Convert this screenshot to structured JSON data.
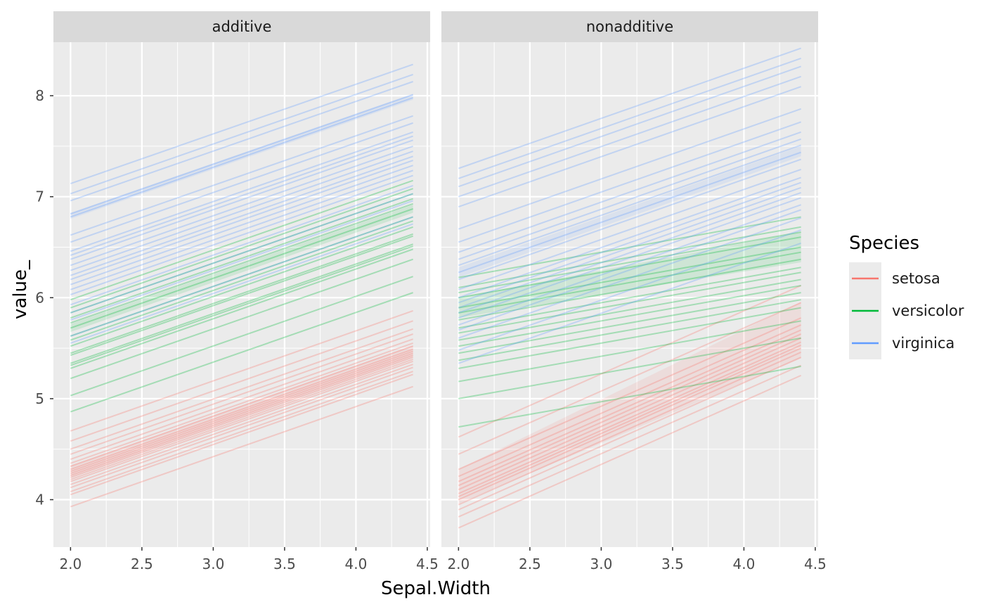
{
  "chart_data": {
    "type": "line",
    "xlabel": "Sepal.Width",
    "ylabel": "value_",
    "xlim": [
      1.88,
      4.52
    ],
    "ylim": [
      3.53,
      8.53
    ],
    "x_ticks": [
      2.0,
      2.5,
      3.0,
      3.5,
      4.0,
      4.5
    ],
    "x_tick_labels": [
      "2.0",
      "2.5",
      "3.0",
      "3.5",
      "4.0",
      "4.5"
    ],
    "y_ticks": [
      4,
      5,
      6,
      7,
      8
    ],
    "y_tick_labels": [
      "4",
      "5",
      "6",
      "7",
      "8"
    ],
    "x_range_lines": [
      2.0,
      4.4
    ],
    "grid": true,
    "legend": {
      "title": "Species",
      "position": "right",
      "entries": [
        {
          "label": "setosa",
          "color": "#F8766D"
        },
        {
          "label": "versicolor",
          "color": "#00BA38"
        },
        {
          "label": "virginica",
          "color": "#619CFF"
        }
      ]
    },
    "panels": [
      {
        "label": "additive",
        "series": [
          {
            "name": "setosa",
            "color": "#F8766D",
            "start_values": [
              3.93,
              4.05,
              4.08,
              4.12,
              4.15,
              4.18,
              4.2,
              4.22,
              4.24,
              4.26,
              4.28,
              4.3,
              4.33,
              4.36,
              4.4,
              4.45,
              4.5,
              4.58,
              4.68
            ],
            "end_values": [
              5.12,
              5.24,
              5.27,
              5.31,
              5.34,
              5.37,
              5.39,
              5.41,
              5.43,
              5.45,
              5.47,
              5.49,
              5.52,
              5.55,
              5.59,
              5.64,
              5.69,
              5.77,
              5.87
            ],
            "band": [
              [
                4.22,
                5.41
              ],
              [
                4.34,
                5.53
              ]
            ]
          },
          {
            "name": "versicolor",
            "color": "#00BA38",
            "start_values": [
              4.87,
              5.03,
              5.2,
              5.3,
              5.33,
              5.35,
              5.43,
              5.45,
              5.52,
              5.58,
              5.62,
              5.7,
              5.75,
              5.8,
              5.85,
              5.9,
              5.98
            ],
            "end_values": [
              6.05,
              6.21,
              6.38,
              6.48,
              6.51,
              6.53,
              6.61,
              6.63,
              6.7,
              6.76,
              6.8,
              6.88,
              6.93,
              6.98,
              7.03,
              7.08,
              7.16
            ],
            "band": [
              [
                5.66,
                6.84
              ],
              [
                5.74,
                6.92
              ]
            ]
          },
          {
            "name": "virginica",
            "color": "#619CFF",
            "start_values": [
              5.55,
              5.62,
              5.78,
              5.85,
              5.93,
              6.03,
              6.08,
              6.13,
              6.18,
              6.22,
              6.27,
              6.32,
              6.38,
              6.42,
              6.46,
              6.55,
              6.62,
              6.8,
              6.83,
              6.96,
              7.03,
              7.13
            ],
            "end_values": [
              6.73,
              6.8,
              6.96,
              7.03,
              7.11,
              7.21,
              7.26,
              7.31,
              7.36,
              7.4,
              7.45,
              7.5,
              7.56,
              7.6,
              7.64,
              7.73,
              7.8,
              7.98,
              8.01,
              8.14,
              8.21,
              8.31
            ],
            "band": [
              [
                6.78,
                7.96
              ],
              [
                6.84,
                8.02
              ]
            ]
          }
        ]
      },
      {
        "label": "nonadditive",
        "series": [
          {
            "name": "setosa",
            "color": "#F8766D",
            "start_values": [
              3.72,
              3.83,
              3.9,
              3.95,
              4.0,
              4.03,
              4.06,
              4.1,
              4.14,
              4.18,
              4.23,
              4.3,
              4.45,
              4.62
            ],
            "end_values": [
              5.23,
              5.33,
              5.41,
              5.46,
              5.5,
              5.53,
              5.56,
              5.6,
              5.64,
              5.68,
              5.73,
              5.8,
              5.95,
              6.12
            ],
            "band": [
              [
                3.96,
                5.4
              ],
              [
                4.3,
                5.96
              ]
            ]
          },
          {
            "name": "versicolor",
            "color": "#00BA38",
            "start_values": [
              4.72,
              5.0,
              5.17,
              5.3,
              5.38,
              5.45,
              5.52,
              5.58,
              5.65,
              5.7,
              5.78,
              5.85,
              5.9,
              6.0,
              6.05,
              6.1,
              6.2
            ],
            "end_values": [
              5.32,
              5.6,
              5.77,
              5.9,
              5.98,
              6.05,
              6.12,
              6.18,
              6.25,
              6.3,
              6.38,
              6.45,
              6.5,
              6.6,
              6.65,
              6.7,
              6.8
            ],
            "band": [
              [
                5.8,
                6.35
              ],
              [
                6.0,
                6.65
              ]
            ]
          },
          {
            "name": "virginica",
            "color": "#619CFF",
            "start_values": [
              5.35,
              5.48,
              5.6,
              5.68,
              5.73,
              5.8,
              5.85,
              5.9,
              5.95,
              6.0,
              6.08,
              6.18,
              6.25,
              6.32,
              6.38,
              6.45,
              6.55,
              6.68,
              6.9,
              7.0,
              7.1,
              7.18,
              7.28
            ],
            "end_values": [
              6.54,
              6.67,
              6.79,
              6.87,
              6.92,
              6.99,
              7.04,
              7.09,
              7.14,
              7.19,
              7.27,
              7.37,
              7.44,
              7.51,
              7.57,
              7.64,
              7.74,
              7.87,
              8.09,
              8.19,
              8.29,
              8.37,
              8.47
            ],
            "band": [
              [
                6.2,
                7.4
              ],
              [
                6.3,
                7.5
              ]
            ]
          }
        ]
      }
    ]
  }
}
